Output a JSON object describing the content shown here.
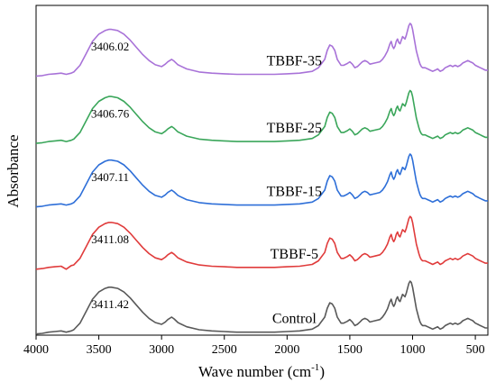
{
  "chart_data": {
    "type": "line",
    "xlabel": "Wave number (cm",
    "xlabel_sup": "-1",
    "xlabel_close": ")",
    "ylabel": "Absorbance",
    "x_reversed": true,
    "xlim": [
      4000,
      400
    ],
    "ylim": [
      0,
      5.5
    ],
    "x_ticks": [
      4000,
      3500,
      3000,
      2500,
      2000,
      1500,
      1000,
      500
    ],
    "x_tick_labels": [
      "4000",
      "3500",
      "3000",
      "2500",
      "2000",
      "1500",
      "1000",
      "500"
    ],
    "y_ticks_shown": false,
    "grid": false,
    "legend": "none",
    "x": [
      4000,
      3950,
      3900,
      3850,
      3800,
      3760,
      3720,
      3700,
      3650,
      3600,
      3550,
      3500,
      3450,
      3420,
      3400,
      3350,
      3300,
      3250,
      3200,
      3150,
      3100,
      3050,
      3000,
      2970,
      2950,
      2920,
      2900,
      2870,
      2850,
      2800,
      2700,
      2600,
      2500,
      2400,
      2350,
      2300,
      2200,
      2100,
      2000,
      1900,
      1800,
      1750,
      1700,
      1680,
      1660,
      1640,
      1620,
      1600,
      1570,
      1550,
      1520,
      1500,
      1480,
      1460,
      1440,
      1420,
      1400,
      1380,
      1360,
      1340,
      1300,
      1260,
      1240,
      1220,
      1200,
      1180,
      1170,
      1160,
      1150,
      1140,
      1130,
      1120,
      1110,
      1100,
      1090,
      1080,
      1070,
      1060,
      1050,
      1040,
      1030,
      1020,
      1010,
      1000,
      990,
      980,
      970,
      960,
      950,
      940,
      930,
      920,
      900,
      880,
      860,
      840,
      820,
      800,
      780,
      760,
      740,
      720,
      700,
      680,
      660,
      640,
      620,
      600,
      580,
      560,
      540,
      520,
      500,
      480,
      460,
      440,
      420,
      400
    ],
    "series": [
      {
        "name": "Control",
        "peak_label": "3411.42",
        "color": "#595959",
        "baseline": 0,
        "values": [
          0.02,
          0.03,
          0.05,
          0.06,
          0.07,
          0.05,
          0.07,
          0.09,
          0.2,
          0.4,
          0.6,
          0.72,
          0.78,
          0.8,
          0.8,
          0.78,
          0.72,
          0.62,
          0.5,
          0.38,
          0.28,
          0.21,
          0.18,
          0.22,
          0.26,
          0.3,
          0.27,
          0.21,
          0.19,
          0.14,
          0.09,
          0.07,
          0.06,
          0.05,
          0.05,
          0.05,
          0.05,
          0.05,
          0.06,
          0.07,
          0.1,
          0.16,
          0.3,
          0.45,
          0.54,
          0.52,
          0.45,
          0.3,
          0.2,
          0.2,
          0.23,
          0.26,
          0.22,
          0.16,
          0.18,
          0.22,
          0.26,
          0.28,
          0.26,
          0.22,
          0.24,
          0.26,
          0.3,
          0.36,
          0.44,
          0.56,
          0.6,
          0.52,
          0.48,
          0.52,
          0.6,
          0.64,
          0.58,
          0.56,
          0.62,
          0.68,
          0.66,
          0.64,
          0.7,
          0.78,
          0.86,
          0.9,
          0.88,
          0.8,
          0.68,
          0.56,
          0.44,
          0.36,
          0.28,
          0.22,
          0.18,
          0.16,
          0.16,
          0.14,
          0.12,
          0.1,
          0.12,
          0.14,
          0.1,
          0.12,
          0.16,
          0.18,
          0.2,
          0.18,
          0.2,
          0.18,
          0.2,
          0.24,
          0.26,
          0.28,
          0.26,
          0.24,
          0.2,
          0.18,
          0.16,
          0.14,
          0.12,
          0.12
        ]
      },
      {
        "name": "TBBF-5",
        "peak_label": "3411.08",
        "color": "#e03b3b",
        "baseline": 1.08,
        "values": [
          0.02,
          0.03,
          0.05,
          0.06,
          0.07,
          0.02,
          0.08,
          0.09,
          0.2,
          0.4,
          0.6,
          0.72,
          0.78,
          0.8,
          0.8,
          0.78,
          0.72,
          0.62,
          0.5,
          0.38,
          0.28,
          0.21,
          0.18,
          0.22,
          0.26,
          0.3,
          0.27,
          0.21,
          0.19,
          0.14,
          0.09,
          0.07,
          0.06,
          0.05,
          0.05,
          0.05,
          0.05,
          0.05,
          0.06,
          0.07,
          0.1,
          0.16,
          0.3,
          0.45,
          0.54,
          0.52,
          0.45,
          0.3,
          0.2,
          0.2,
          0.23,
          0.26,
          0.22,
          0.16,
          0.18,
          0.22,
          0.26,
          0.28,
          0.26,
          0.22,
          0.24,
          0.26,
          0.3,
          0.36,
          0.44,
          0.56,
          0.6,
          0.52,
          0.48,
          0.52,
          0.6,
          0.64,
          0.58,
          0.56,
          0.62,
          0.68,
          0.66,
          0.64,
          0.7,
          0.78,
          0.86,
          0.9,
          0.88,
          0.8,
          0.68,
          0.56,
          0.44,
          0.36,
          0.28,
          0.22,
          0.18,
          0.16,
          0.16,
          0.14,
          0.12,
          0.1,
          0.12,
          0.14,
          0.1,
          0.12,
          0.16,
          0.18,
          0.2,
          0.18,
          0.2,
          0.18,
          0.2,
          0.24,
          0.26,
          0.28,
          0.26,
          0.24,
          0.2,
          0.18,
          0.16,
          0.14,
          0.12,
          0.12
        ]
      },
      {
        "name": "TBBF-15",
        "peak_label": "3407.11",
        "color": "#2e6fd8",
        "baseline": 2.12,
        "values": [
          0.02,
          0.03,
          0.05,
          0.06,
          0.07,
          0.05,
          0.07,
          0.09,
          0.2,
          0.4,
          0.6,
          0.72,
          0.78,
          0.8,
          0.8,
          0.78,
          0.72,
          0.62,
          0.5,
          0.38,
          0.28,
          0.21,
          0.18,
          0.22,
          0.26,
          0.3,
          0.27,
          0.21,
          0.19,
          0.14,
          0.09,
          0.07,
          0.06,
          0.05,
          0.05,
          0.05,
          0.05,
          0.05,
          0.06,
          0.07,
          0.1,
          0.16,
          0.3,
          0.45,
          0.54,
          0.52,
          0.45,
          0.3,
          0.2,
          0.2,
          0.23,
          0.26,
          0.22,
          0.16,
          0.18,
          0.22,
          0.26,
          0.28,
          0.26,
          0.22,
          0.24,
          0.26,
          0.3,
          0.36,
          0.44,
          0.56,
          0.6,
          0.52,
          0.48,
          0.52,
          0.6,
          0.64,
          0.58,
          0.56,
          0.62,
          0.68,
          0.66,
          0.64,
          0.7,
          0.78,
          0.86,
          0.9,
          0.88,
          0.8,
          0.68,
          0.56,
          0.44,
          0.36,
          0.28,
          0.22,
          0.18,
          0.16,
          0.16,
          0.14,
          0.12,
          0.1,
          0.12,
          0.14,
          0.1,
          0.12,
          0.16,
          0.18,
          0.2,
          0.18,
          0.2,
          0.18,
          0.2,
          0.24,
          0.26,
          0.28,
          0.26,
          0.24,
          0.2,
          0.18,
          0.16,
          0.14,
          0.12,
          0.12
        ]
      },
      {
        "name": "TBBF-25",
        "peak_label": "3406.76",
        "color": "#3aa65a",
        "baseline": 3.18,
        "values": [
          0.02,
          0.03,
          0.05,
          0.06,
          0.07,
          0.05,
          0.07,
          0.09,
          0.2,
          0.4,
          0.6,
          0.72,
          0.78,
          0.8,
          0.8,
          0.78,
          0.72,
          0.62,
          0.5,
          0.38,
          0.28,
          0.21,
          0.18,
          0.22,
          0.26,
          0.3,
          0.27,
          0.21,
          0.19,
          0.14,
          0.09,
          0.07,
          0.06,
          0.05,
          0.05,
          0.05,
          0.05,
          0.05,
          0.06,
          0.07,
          0.1,
          0.16,
          0.3,
          0.45,
          0.54,
          0.52,
          0.45,
          0.3,
          0.2,
          0.2,
          0.23,
          0.26,
          0.22,
          0.16,
          0.18,
          0.22,
          0.26,
          0.28,
          0.26,
          0.22,
          0.24,
          0.26,
          0.3,
          0.36,
          0.44,
          0.56,
          0.6,
          0.52,
          0.48,
          0.52,
          0.6,
          0.64,
          0.58,
          0.56,
          0.62,
          0.68,
          0.66,
          0.64,
          0.7,
          0.78,
          0.86,
          0.9,
          0.88,
          0.8,
          0.68,
          0.56,
          0.44,
          0.36,
          0.28,
          0.22,
          0.18,
          0.16,
          0.16,
          0.14,
          0.12,
          0.1,
          0.12,
          0.14,
          0.1,
          0.12,
          0.16,
          0.18,
          0.2,
          0.18,
          0.2,
          0.18,
          0.2,
          0.24,
          0.26,
          0.28,
          0.26,
          0.24,
          0.2,
          0.18,
          0.16,
          0.14,
          0.12,
          0.12
        ]
      },
      {
        "name": "TBBF-35",
        "peak_label": "3406.02",
        "color": "#a872d8",
        "baseline": 4.3,
        "values": [
          0.02,
          0.03,
          0.05,
          0.06,
          0.07,
          0.05,
          0.07,
          0.09,
          0.2,
          0.4,
          0.6,
          0.72,
          0.78,
          0.8,
          0.8,
          0.78,
          0.72,
          0.62,
          0.5,
          0.38,
          0.28,
          0.21,
          0.18,
          0.22,
          0.26,
          0.3,
          0.27,
          0.21,
          0.19,
          0.14,
          0.09,
          0.07,
          0.06,
          0.05,
          0.05,
          0.05,
          0.05,
          0.05,
          0.06,
          0.07,
          0.1,
          0.16,
          0.3,
          0.45,
          0.54,
          0.52,
          0.45,
          0.3,
          0.2,
          0.2,
          0.23,
          0.26,
          0.22,
          0.16,
          0.18,
          0.22,
          0.26,
          0.28,
          0.26,
          0.22,
          0.24,
          0.26,
          0.3,
          0.36,
          0.44,
          0.56,
          0.6,
          0.52,
          0.48,
          0.52,
          0.6,
          0.64,
          0.58,
          0.56,
          0.62,
          0.68,
          0.66,
          0.64,
          0.7,
          0.78,
          0.86,
          0.9,
          0.88,
          0.8,
          0.68,
          0.56,
          0.44,
          0.36,
          0.28,
          0.22,
          0.18,
          0.16,
          0.16,
          0.14,
          0.12,
          0.1,
          0.12,
          0.14,
          0.1,
          0.12,
          0.16,
          0.18,
          0.2,
          0.18,
          0.2,
          0.18,
          0.2,
          0.24,
          0.26,
          0.28,
          0.26,
          0.24,
          0.2,
          0.18,
          0.16,
          0.14,
          0.12,
          0.12
        ]
      }
    ]
  }
}
